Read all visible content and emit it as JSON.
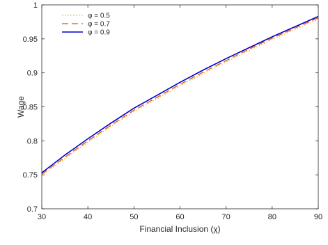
{
  "chart_data": {
    "type": "line",
    "title": "",
    "xlabel": "Financial Inclusion (χ)",
    "ylabel": "Wage",
    "xlim": [
      30,
      90
    ],
    "ylim": [
      0.7,
      1.0
    ],
    "xticks": [
      30,
      40,
      50,
      60,
      70,
      80,
      90
    ],
    "yticks": [
      0.7,
      0.75,
      0.8,
      0.85,
      0.9,
      0.95,
      1
    ],
    "ytick_labels": [
      "0.7",
      "0.75",
      "0.8",
      "0.85",
      "0.9",
      "0.95",
      "1"
    ],
    "grid": false,
    "legend_position": "top-left",
    "x": [
      30,
      35,
      40,
      45,
      50,
      55,
      60,
      65,
      70,
      75,
      80,
      85,
      90
    ],
    "series": [
      {
        "name": "φ = 0.5",
        "color": "#EDB120",
        "style": "dotted",
        "values": [
          0.749,
          0.774,
          0.798,
          0.821,
          0.843,
          0.862,
          0.881,
          0.899,
          0.916,
          0.933,
          0.949,
          0.964,
          0.979
        ]
      },
      {
        "name": "φ = 0.7",
        "color": "#D95319",
        "style": "dashed",
        "values": [
          0.751,
          0.776,
          0.8,
          0.823,
          0.845,
          0.864,
          0.883,
          0.901,
          0.918,
          0.935,
          0.951,
          0.966,
          0.981
        ]
      },
      {
        "name": "φ = 0.9",
        "color": "#0000CC",
        "style": "solid",
        "values": [
          0.753,
          0.779,
          0.803,
          0.826,
          0.848,
          0.867,
          0.886,
          0.904,
          0.921,
          0.937,
          0.953,
          0.968,
          0.983
        ]
      }
    ]
  }
}
